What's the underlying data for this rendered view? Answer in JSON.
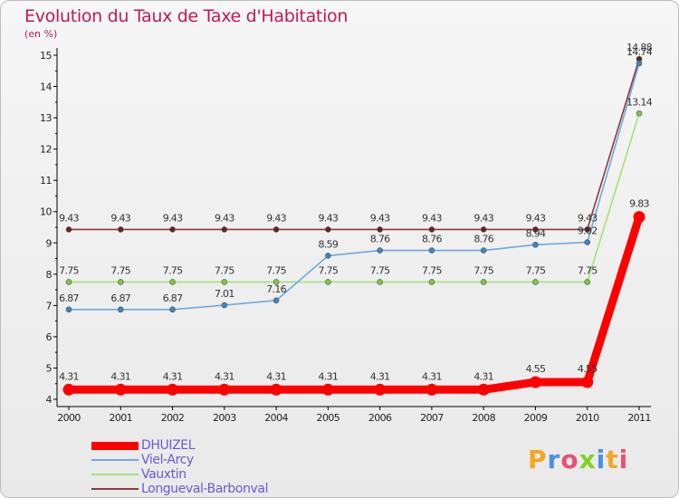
{
  "header": {
    "title": "Evolution du Taux de Taxe d'Habitation",
    "subtitle": "(en %)"
  },
  "brand": {
    "text": "Proxiti",
    "colors": [
      "#f5a623",
      "#4a90e2",
      "#e94e77",
      "#7ed321",
      "#4a90e2",
      "#f5a623",
      "#e94e77"
    ]
  },
  "chart_data": {
    "type": "line",
    "title": "Evolution du Taux de Taxe d'Habitation",
    "ylabel": "(en %)",
    "xlabel": "",
    "x": [
      "2000",
      "2001",
      "2002",
      "2003",
      "2004",
      "2005",
      "2006",
      "2007",
      "2008",
      "2009",
      "2010",
      "2011"
    ],
    "ylim": [
      4,
      15
    ],
    "yticks": [
      "4",
      "5",
      "6",
      "7",
      "8",
      "9",
      "10",
      "11",
      "12",
      "13",
      "14",
      "15"
    ],
    "grid": false,
    "legend_position": "bottom-left",
    "series": [
      {
        "name": "DHUIZEL",
        "color": "#ff0000",
        "point_color": "#ff0000",
        "values": [
          4.31,
          4.31,
          4.31,
          4.31,
          4.31,
          4.31,
          4.31,
          4.31,
          4.31,
          4.55,
          4.55,
          9.83
        ],
        "labels": [
          "4.31",
          "4.31",
          "4.31",
          "4.31",
          "4.31",
          "4.31",
          "4.31",
          "4.31",
          "4.31",
          "4.55",
          "4.55",
          "9.83"
        ]
      },
      {
        "name": "Viel-Arcy",
        "color": "#6fa8dc",
        "point_color": "#3d85c6",
        "values": [
          6.87,
          6.87,
          6.87,
          7.01,
          7.16,
          8.59,
          8.76,
          8.76,
          8.76,
          8.94,
          9.02,
          14.74
        ],
        "labels": [
          "6.87",
          "6.87",
          "6.87",
          "7.01",
          "7.16",
          "8.59",
          "8.76",
          "8.76",
          "8.76",
          "8.94",
          "9.02",
          "14.74"
        ]
      },
      {
        "name": "Vauxtin",
        "color": "#a6e07a",
        "point_color": "#7cc83e",
        "values": [
          7.75,
          7.75,
          7.75,
          7.75,
          7.75,
          7.75,
          7.75,
          7.75,
          7.75,
          7.75,
          7.75,
          13.14
        ],
        "labels": [
          "7.75",
          "7.75",
          "7.75",
          "7.75",
          "7.75",
          "7.75",
          "7.75",
          "7.75",
          "7.75",
          "7.75",
          "7.75",
          "13.14"
        ]
      },
      {
        "name": "Longueval-Barbonval",
        "color": "#8b3a3a",
        "point_color": "#6b1f1f",
        "values": [
          9.43,
          9.43,
          9.43,
          9.43,
          9.43,
          9.43,
          9.43,
          9.43,
          9.43,
          9.43,
          9.43,
          14.88
        ],
        "labels": [
          "9.43",
          "9.43",
          "9.43",
          "9.43",
          "9.43",
          "9.43",
          "9.43",
          "9.43",
          "9.43",
          "9.43",
          "9.43",
          "14.88"
        ]
      }
    ]
  }
}
